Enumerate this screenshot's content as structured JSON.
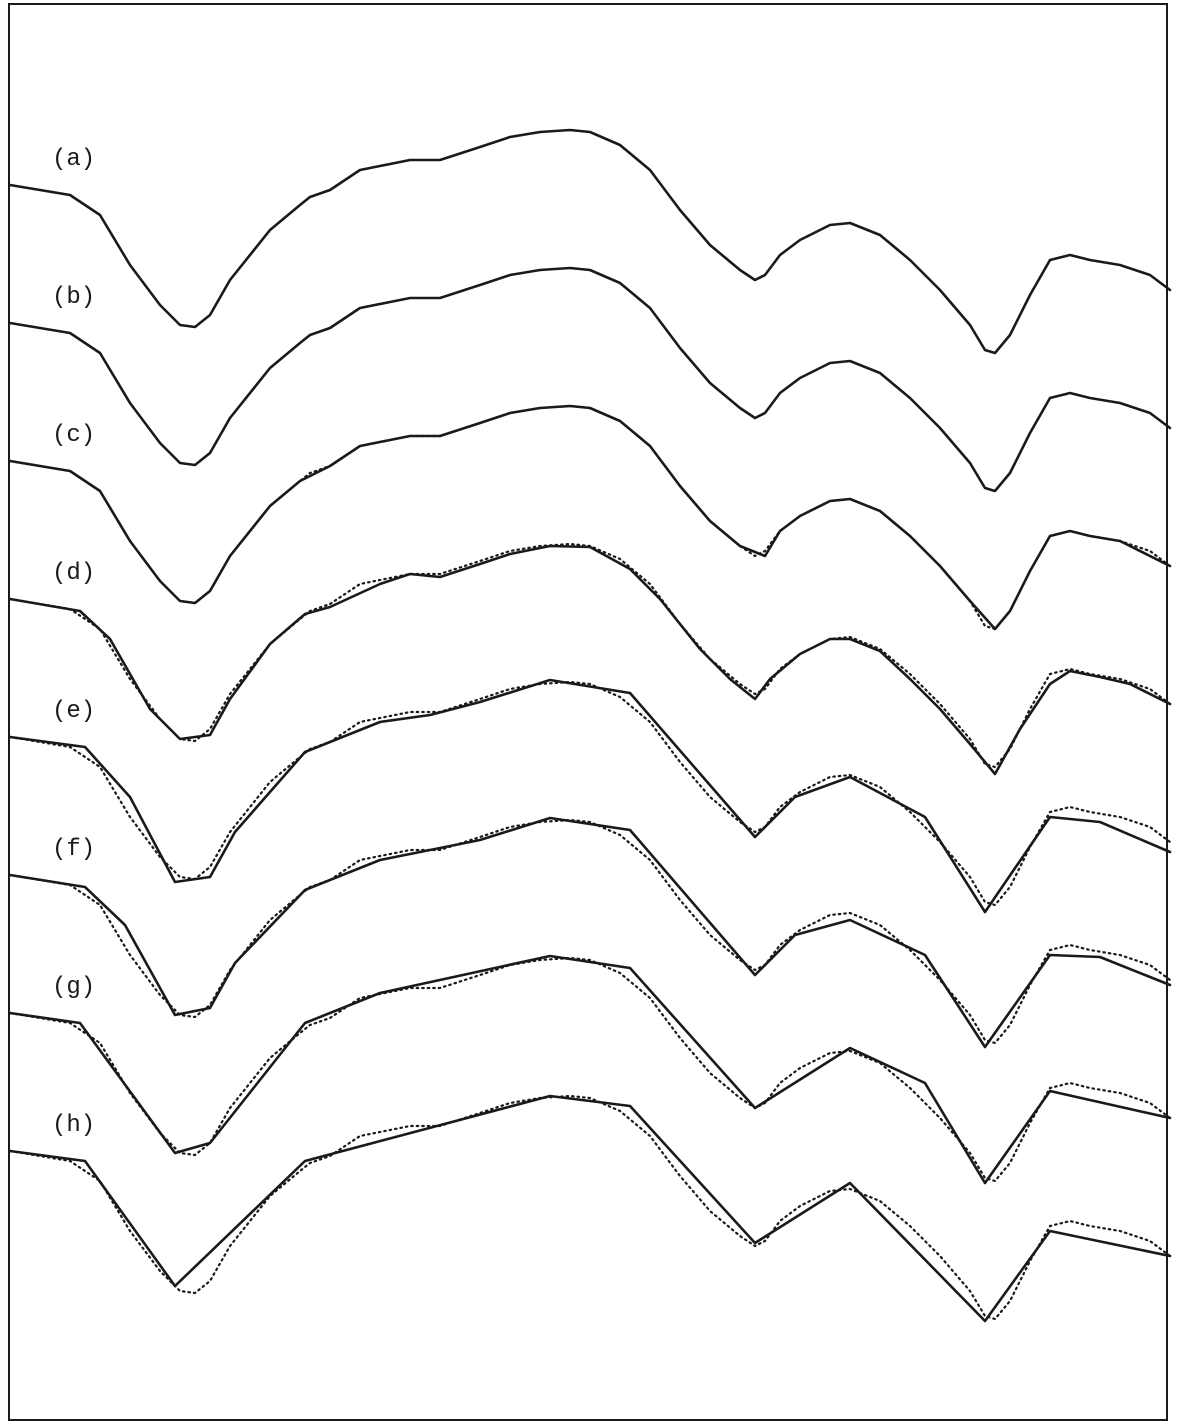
{
  "chart_data": {
    "type": "line",
    "title": "",
    "xlabel": "",
    "ylabel": "",
    "grid": false,
    "legend": "none",
    "xlim": [
      0,
      1160
    ],
    "ylim": [
      -400,
      210
    ],
    "line_color": "#1a1a1a",
    "reference_curve": {
      "style": "dotted",
      "x": [
        0,
        60,
        90,
        120,
        150,
        170,
        185,
        200,
        220,
        260,
        290,
        300,
        320,
        350,
        400,
        430,
        470,
        500,
        530,
        560,
        580,
        610,
        640,
        670,
        700,
        730,
        745,
        755,
        770,
        790,
        820,
        840,
        870,
        900,
        930,
        960,
        975,
        985,
        1000,
        1020,
        1040,
        1060,
        1080,
        1110,
        1140,
        1160
      ],
      "y": [
        0,
        -10,
        -30,
        -80,
        -120,
        -140,
        -142,
        -130,
        -95,
        -45,
        -20,
        -12,
        -5,
        15,
        25,
        25,
        38,
        48,
        53,
        55,
        53,
        40,
        15,
        -25,
        -60,
        -85,
        -95,
        -90,
        -70,
        -55,
        -40,
        -38,
        -50,
        -75,
        -105,
        -140,
        -165,
        -168,
        -150,
        -110,
        -75,
        -70,
        -75,
        -80,
        -90,
        -105
      ]
    },
    "series": [
      {
        "name": "(a)",
        "offset": 0,
        "x": [
          0,
          60,
          90,
          120,
          150,
          170,
          185,
          200,
          220,
          260,
          290,
          300,
          320,
          350,
          400,
          430,
          470,
          500,
          530,
          560,
          580,
          610,
          640,
          670,
          700,
          730,
          745,
          755,
          770,
          790,
          820,
          840,
          870,
          900,
          930,
          960,
          975,
          985,
          1000,
          1020,
          1040,
          1060,
          1080,
          1110,
          1140,
          1160
        ],
        "y": [
          0,
          -10,
          -30,
          -80,
          -120,
          -140,
          -142,
          -130,
          -95,
          -45,
          -20,
          -12,
          -5,
          15,
          25,
          25,
          38,
          48,
          53,
          55,
          53,
          40,
          15,
          -25,
          -60,
          -85,
          -95,
          -90,
          -70,
          -55,
          -40,
          -38,
          -50,
          -75,
          -105,
          -140,
          -165,
          -168,
          -150,
          -110,
          -75,
          -70,
          -75,
          -80,
          -90,
          -105
        ]
      },
      {
        "name": "(b)",
        "offset": -138,
        "x": [
          0,
          60,
          90,
          120,
          150,
          170,
          185,
          200,
          220,
          260,
          290,
          300,
          320,
          350,
          400,
          430,
          470,
          500,
          530,
          560,
          580,
          610,
          640,
          670,
          700,
          730,
          745,
          755,
          770,
          790,
          820,
          840,
          870,
          900,
          930,
          960,
          975,
          985,
          1000,
          1020,
          1040,
          1060,
          1080,
          1110,
          1140,
          1160
        ],
        "y": [
          0,
          -10,
          -30,
          -80,
          -120,
          -140,
          -142,
          -130,
          -95,
          -45,
          -20,
          -12,
          -5,
          15,
          25,
          25,
          38,
          48,
          53,
          55,
          53,
          40,
          15,
          -25,
          -60,
          -85,
          -95,
          -90,
          -70,
          -55,
          -40,
          -38,
          -50,
          -75,
          -105,
          -140,
          -165,
          -168,
          -150,
          -110,
          -75,
          -70,
          -75,
          -80,
          -90,
          -105
        ]
      },
      {
        "name": "(c)",
        "offset": -276,
        "x": [
          0,
          60,
          90,
          120,
          150,
          170,
          185,
          200,
          220,
          260,
          290,
          320,
          350,
          400,
          430,
          470,
          500,
          530,
          560,
          580,
          610,
          640,
          670,
          700,
          730,
          755,
          770,
          790,
          820,
          840,
          870,
          900,
          930,
          960,
          985,
          1000,
          1020,
          1040,
          1060,
          1080,
          1110,
          1160
        ],
        "y": [
          0,
          -10,
          -30,
          -80,
          -120,
          -140,
          -142,
          -130,
          -95,
          -45,
          -20,
          -5,
          15,
          25,
          25,
          38,
          48,
          53,
          55,
          53,
          40,
          15,
          -25,
          -60,
          -85,
          -95,
          -70,
          -55,
          -40,
          -38,
          -50,
          -75,
          -105,
          -140,
          -168,
          -150,
          -110,
          -75,
          -70,
          -75,
          -80,
          -105
        ]
      },
      {
        "name": "(d)",
        "offset": -414,
        "x": [
          0,
          70,
          100,
          140,
          170,
          200,
          220,
          260,
          295,
          320,
          370,
          400,
          430,
          470,
          500,
          540,
          580,
          620,
          650,
          690,
          720,
          745,
          760,
          790,
          820,
          840,
          870,
          900,
          930,
          960,
          985,
          1010,
          1040,
          1060,
          1090,
          1120,
          1160
        ],
        "y": [
          0,
          -12,
          -40,
          -110,
          -140,
          -136,
          -100,
          -45,
          -15,
          -8,
          15,
          25,
          22,
          35,
          45,
          53,
          52,
          30,
          0,
          -50,
          -80,
          -100,
          -80,
          -55,
          -40,
          -40,
          -52,
          -80,
          -110,
          -145,
          -175,
          -130,
          -85,
          -72,
          -78,
          -85,
          -105
        ]
      },
      {
        "name": "(e)",
        "offset": -552,
        "x": [
          0,
          75,
          120,
          165,
          200,
          225,
          295,
          370,
          420,
          470,
          540,
          620,
          745,
          785,
          840,
          915,
          975,
          1040,
          1090,
          1160
        ],
        "y": [
          0,
          -10,
          -60,
          -145,
          -140,
          -95,
          -15,
          15,
          22,
          35,
          57,
          44,
          -100,
          -60,
          -40,
          -80,
          -175,
          -80,
          -85,
          -115
        ]
      },
      {
        "name": "(f)",
        "offset": -690,
        "x": [
          0,
          75,
          115,
          165,
          200,
          225,
          295,
          370,
          420,
          470,
          540,
          620,
          745,
          785,
          840,
          915,
          975,
          1040,
          1090,
          1160
        ],
        "y": [
          0,
          -12,
          -50,
          -140,
          -133,
          -88,
          -15,
          15,
          25,
          35,
          57,
          45,
          -100,
          -60,
          -45,
          -80,
          -172,
          -80,
          -82,
          -110
        ]
      },
      {
        "name": "(g)",
        "offset": -828,
        "x": [
          0,
          70,
          165,
          200,
          295,
          370,
          540,
          620,
          745,
          840,
          915,
          975,
          1040,
          1160
        ],
        "y": [
          0,
          -10,
          -140,
          -130,
          -10,
          20,
          57,
          45,
          -95,
          -35,
          -70,
          -170,
          -78,
          -105
        ]
      },
      {
        "name": "(h)",
        "offset": -966,
        "x": [
          0,
          75,
          165,
          295,
          540,
          620,
          745,
          840,
          975,
          1040,
          1160
        ],
        "y": [
          0,
          -10,
          -135,
          -10,
          55,
          45,
          -92,
          -32,
          -170,
          -80,
          -105
        ]
      }
    ]
  }
}
